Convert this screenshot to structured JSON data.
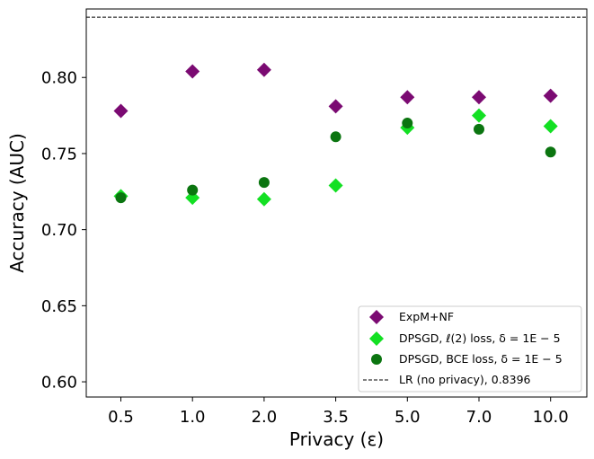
{
  "chart_data": {
    "type": "scatter",
    "title": "",
    "xlabel": "Privacy (ε)",
    "ylabel": "Accuracy (AUC)",
    "x_categories": [
      "0.5",
      "1.0",
      "2.0",
      "3.5",
      "5.0",
      "7.0",
      "10.0"
    ],
    "yticks": [
      "0.60",
      "0.65",
      "0.70",
      "0.75",
      "0.80"
    ],
    "ylim": [
      0.59,
      0.845
    ],
    "grid": false,
    "legend_position": "lower-right",
    "series": [
      {
        "name": "ExpM+NF",
        "marker": "diamond",
        "color": "#7b0a72",
        "values": [
          0.778,
          0.804,
          0.805,
          0.781,
          0.787,
          0.787,
          0.788
        ]
      },
      {
        "name": "DPSGD, ℓ(2) loss, δ = 1E − 5",
        "marker": "diamond",
        "color": "#13e023",
        "values": [
          0.722,
          0.721,
          0.72,
          0.729,
          0.767,
          0.775,
          0.768
        ]
      },
      {
        "name": "DPSGD, BCE loss, δ = 1E − 5",
        "marker": "circle",
        "color": "#0b7510",
        "values": [
          0.721,
          0.726,
          0.731,
          0.761,
          0.77,
          0.766,
          0.751
        ]
      }
    ],
    "reference_line": {
      "name": "LR (no privacy), 0.8396",
      "value": 0.8396,
      "style": "dashed",
      "color": "#000000"
    }
  }
}
